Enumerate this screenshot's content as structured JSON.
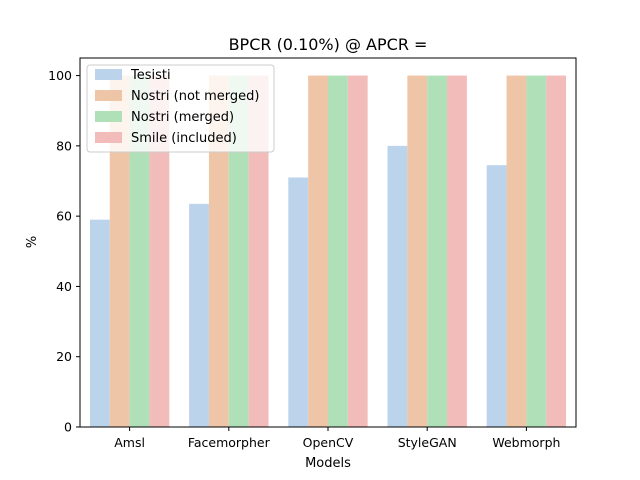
{
  "chart_data": {
    "type": "bar",
    "title": "BPCR (0.10%) @ APCR =",
    "xlabel": "Models",
    "ylabel": "%",
    "ylim": [
      0,
      105
    ],
    "yticks": [
      0,
      20,
      40,
      60,
      80,
      100
    ],
    "categories": [
      "Amsl",
      "Facemorpher",
      "OpenCV",
      "StyleGAN",
      "Webmorph"
    ],
    "series": [
      {
        "name": "Tesisti",
        "color": "#bcd3ec",
        "values": [
          59,
          63.5,
          71,
          80,
          74.5
        ]
      },
      {
        "name": "Nostri (not merged)",
        "color": "#efc5a7",
        "values": [
          100,
          100,
          100,
          100,
          100
        ]
      },
      {
        "name": "Nostri (merged)",
        "color": "#b0e0b8",
        "values": [
          100,
          100,
          100,
          100,
          100
        ]
      },
      {
        "name": "Smile (included)",
        "color": "#f1bcba",
        "values": [
          100,
          100,
          100,
          100,
          100
        ]
      }
    ],
    "grid": false,
    "legend": "top-left"
  }
}
